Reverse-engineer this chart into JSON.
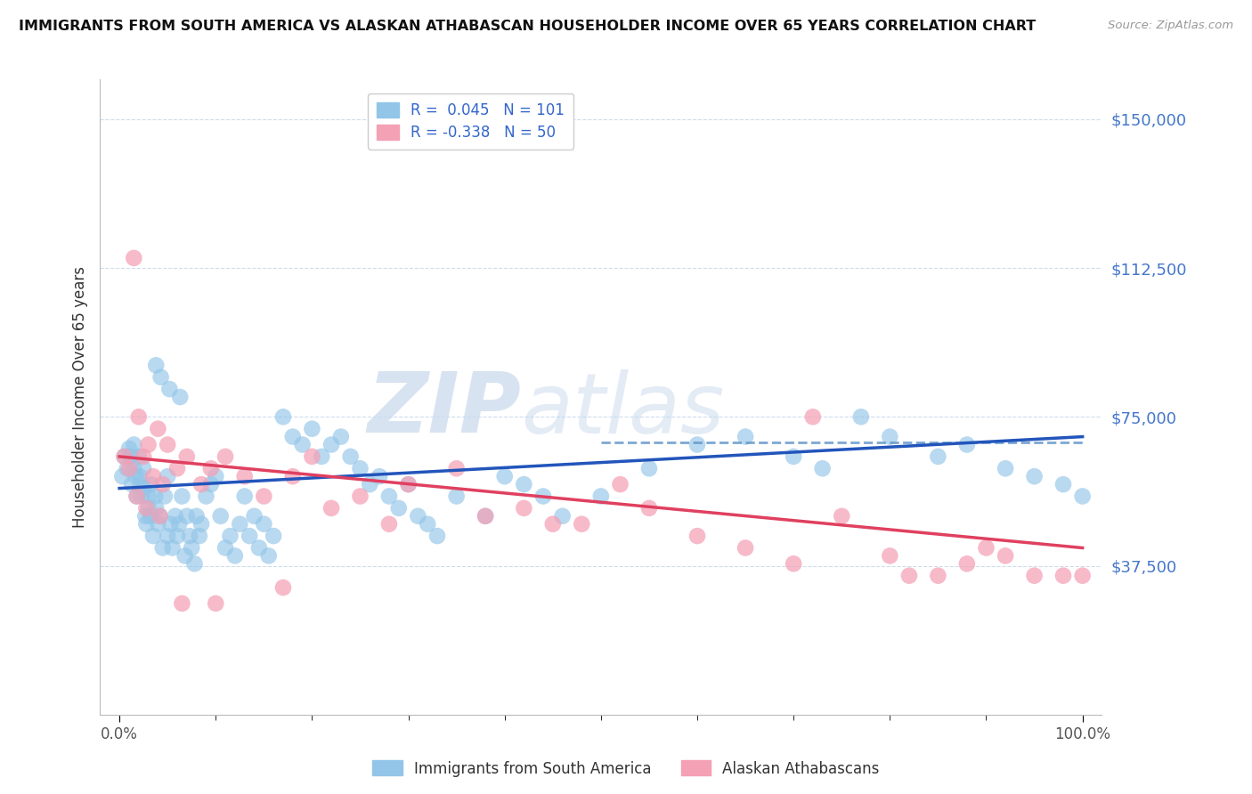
{
  "title": "IMMIGRANTS FROM SOUTH AMERICA VS ALASKAN ATHABASCAN HOUSEHOLDER INCOME OVER 65 YEARS CORRELATION CHART",
  "source": "Source: ZipAtlas.com",
  "ylabel": "Householder Income Over 65 years",
  "R_blue": 0.045,
  "N_blue": 101,
  "R_pink": -0.338,
  "N_pink": 50,
  "xlim": [
    -2,
    102
  ],
  "ylim": [
    0,
    160000
  ],
  "yticks": [
    37500,
    75000,
    112500,
    150000
  ],
  "ytick_labels": [
    "$37,500",
    "$75,000",
    "$112,500",
    "$150,000"
  ],
  "xtick_labels": [
    "0.0%",
    "100.0%"
  ],
  "blue_color": "#92C5E8",
  "pink_color": "#F4A0B5",
  "blue_line_color": "#2255BB",
  "pink_line_color": "#E04060",
  "blue_dash_color": "#6699CC",
  "watermark_zip": "ZIP",
  "watermark_atlas": "atlas",
  "legend_label_blue": "Immigrants from South America",
  "legend_label_pink": "Alaskan Athabascans",
  "blue_trend": [
    0,
    100,
    57000,
    70000
  ],
  "pink_trend": [
    0,
    100,
    65000,
    42000
  ],
  "blue_dash": [
    50,
    100,
    68500,
    68500
  ],
  "blue_scatter_x": [
    0.3,
    0.5,
    0.8,
    1.0,
    1.2,
    1.3,
    1.5,
    1.5,
    1.7,
    1.8,
    2.0,
    2.1,
    2.2,
    2.3,
    2.5,
    2.5,
    2.7,
    2.8,
    3.0,
    3.0,
    3.2,
    3.3,
    3.5,
    3.7,
    3.8,
    4.0,
    4.2,
    4.5,
    4.7,
    5.0,
    5.0,
    5.3,
    5.5,
    5.8,
    6.0,
    6.2,
    6.5,
    6.8,
    7.0,
    7.3,
    7.5,
    7.8,
    8.0,
    8.3,
    8.5,
    9.0,
    9.5,
    10.0,
    10.5,
    11.0,
    11.5,
    12.0,
    12.5,
    13.0,
    13.5,
    14.0,
    14.5,
    15.0,
    15.5,
    16.0,
    17.0,
    18.0,
    19.0,
    20.0,
    21.0,
    22.0,
    23.0,
    24.0,
    25.0,
    26.0,
    27.0,
    28.0,
    29.0,
    30.0,
    31.0,
    32.0,
    33.0,
    35.0,
    38.0,
    40.0,
    42.0,
    44.0,
    46.0,
    50.0,
    55.0,
    60.0,
    65.0,
    70.0,
    73.0,
    77.0,
    80.0,
    85.0,
    88.0,
    92.0,
    95.0,
    98.0,
    100.0,
    3.8,
    4.3,
    5.2,
    6.3
  ],
  "blue_scatter_y": [
    60000,
    65000,
    62000,
    67000,
    65000,
    58000,
    68000,
    62000,
    60000,
    55000,
    65000,
    60000,
    58000,
    55000,
    62000,
    57000,
    50000,
    48000,
    55000,
    52000,
    50000,
    58000,
    45000,
    55000,
    52000,
    48000,
    50000,
    42000,
    55000,
    60000,
    45000,
    48000,
    42000,
    50000,
    45000,
    48000,
    55000,
    40000,
    50000,
    45000,
    42000,
    38000,
    50000,
    45000,
    48000,
    55000,
    58000,
    60000,
    50000,
    42000,
    45000,
    40000,
    48000,
    55000,
    45000,
    50000,
    42000,
    48000,
    40000,
    45000,
    75000,
    70000,
    68000,
    72000,
    65000,
    68000,
    70000,
    65000,
    62000,
    58000,
    60000,
    55000,
    52000,
    58000,
    50000,
    48000,
    45000,
    55000,
    50000,
    60000,
    58000,
    55000,
    50000,
    55000,
    62000,
    68000,
    70000,
    65000,
    62000,
    75000,
    70000,
    65000,
    68000,
    62000,
    60000,
    58000,
    55000,
    88000,
    85000,
    82000,
    80000
  ],
  "pink_scatter_x": [
    0.5,
    1.0,
    1.5,
    2.0,
    2.5,
    3.0,
    3.5,
    4.0,
    4.5,
    5.0,
    6.0,
    7.0,
    8.5,
    9.5,
    11.0,
    13.0,
    15.0,
    18.0,
    20.0,
    22.0,
    25.0,
    28.0,
    30.0,
    35.0,
    38.0,
    42.0,
    48.0,
    52.0,
    55.0,
    60.0,
    65.0,
    70.0,
    72.0,
    75.0,
    80.0,
    82.0,
    85.0,
    88.0,
    90.0,
    92.0,
    95.0,
    98.0,
    100.0,
    1.8,
    2.8,
    4.2,
    6.5,
    10.0,
    17.0,
    45.0
  ],
  "pink_scatter_y": [
    65000,
    62000,
    115000,
    75000,
    65000,
    68000,
    60000,
    72000,
    58000,
    68000,
    62000,
    65000,
    58000,
    62000,
    65000,
    60000,
    55000,
    60000,
    65000,
    52000,
    55000,
    48000,
    58000,
    62000,
    50000,
    52000,
    48000,
    58000,
    52000,
    45000,
    42000,
    38000,
    75000,
    50000,
    40000,
    35000,
    35000,
    38000,
    42000,
    40000,
    35000,
    35000,
    35000,
    55000,
    52000,
    50000,
    28000,
    28000,
    32000,
    48000
  ]
}
